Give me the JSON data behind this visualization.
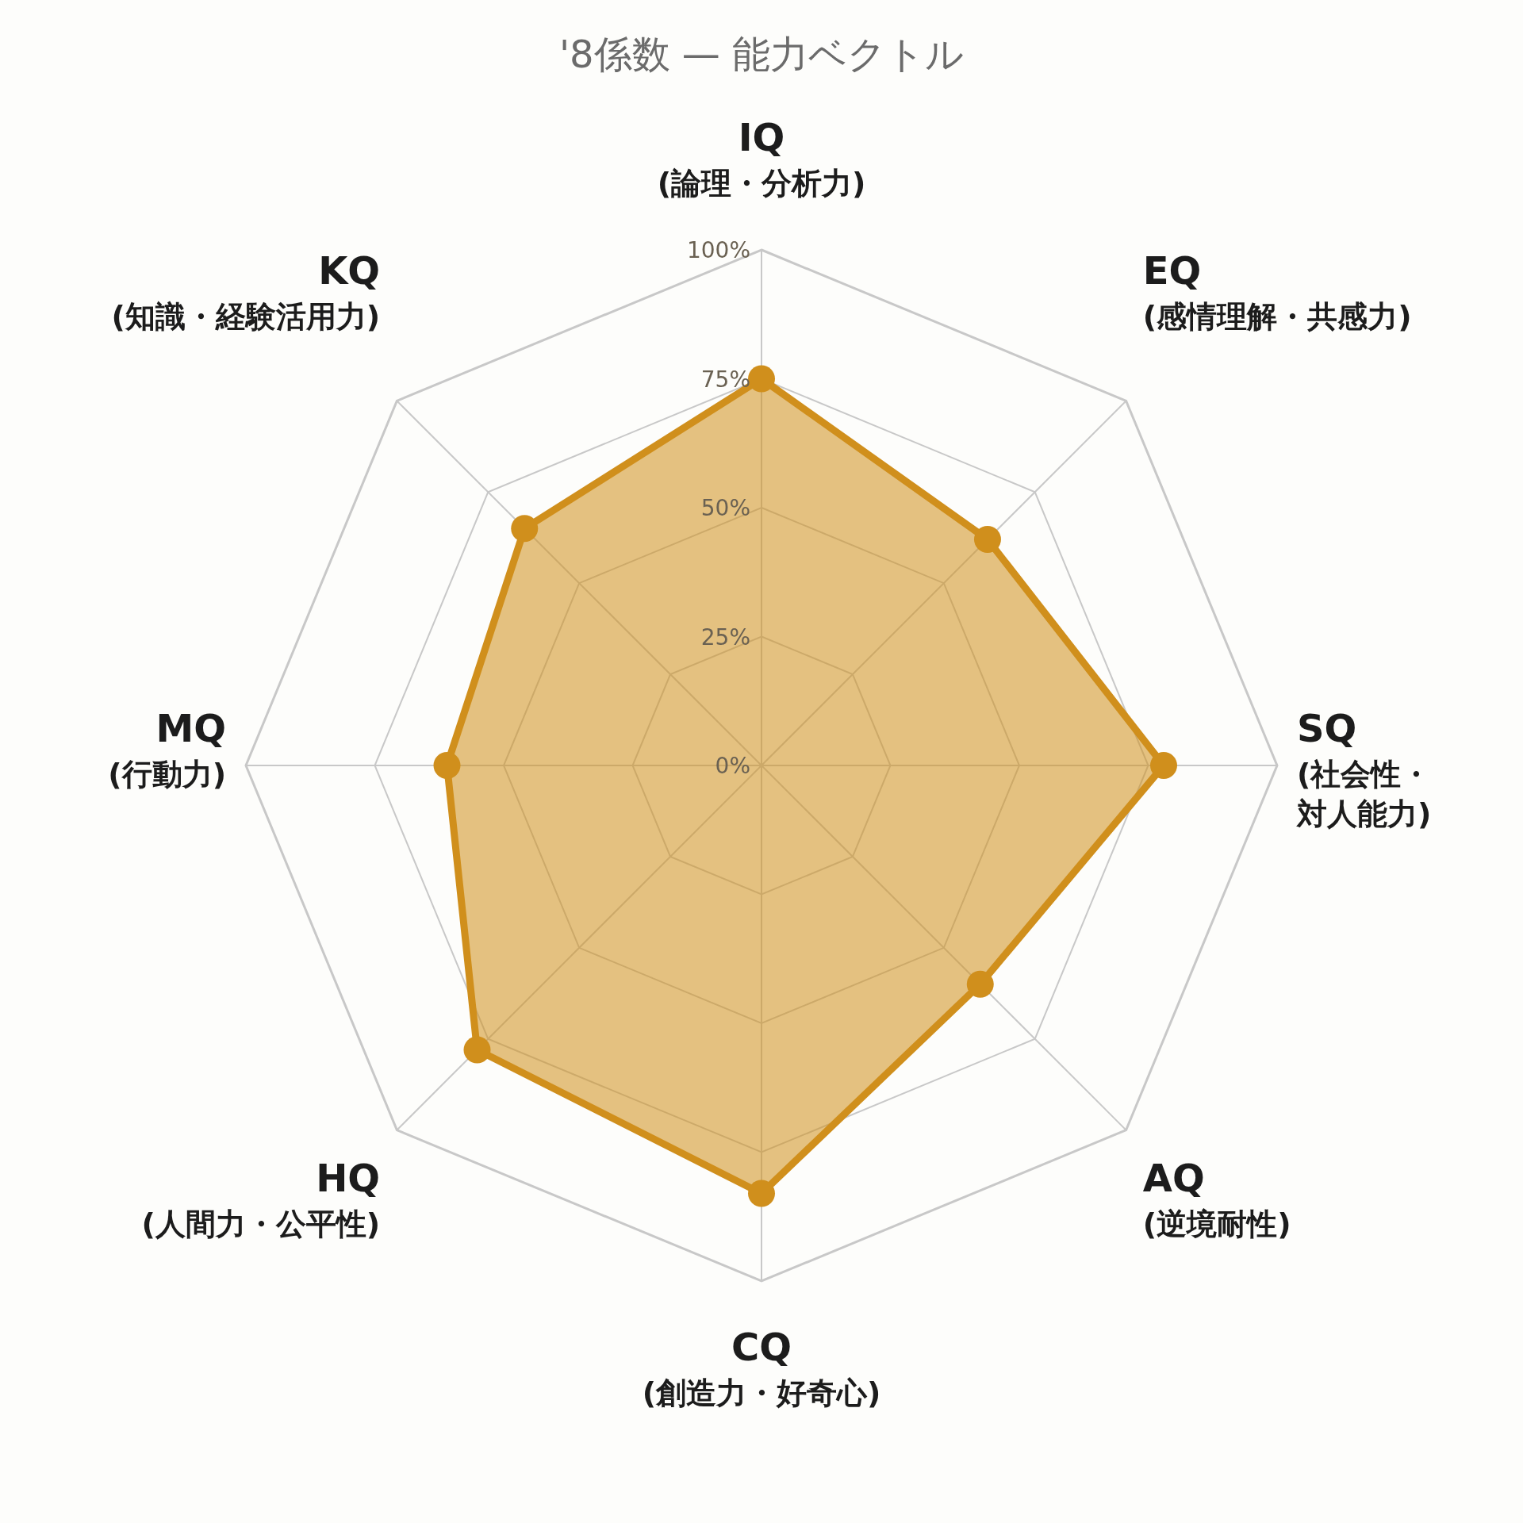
{
  "chart_data": {
    "type": "radar",
    "title": "'8係数 — 能力ベクトル",
    "categories": [
      "IQ (論理・分析力)",
      "EQ (感情理解・共感力)",
      "SQ (社会性・対人能力)",
      "AQ (逆境耐性)",
      "CQ (創造力・好奇心)",
      "HQ (人間力・公平性)",
      "MQ (行動力)",
      "KQ (知識・経験活用力)"
    ],
    "series": [
      {
        "color": "#d08f1c",
        "values": [
          75,
          62,
          78,
          60,
          83,
          78,
          61,
          65
        ]
      }
    ],
    "ylim": [
      0,
      100
    ],
    "yticks": [
      {
        "value": 0,
        "label": "0%"
      },
      {
        "value": 25,
        "label": "25%"
      },
      {
        "value": 50,
        "label": "50%"
      },
      {
        "value": 75,
        "label": "75%"
      },
      {
        "value": 100,
        "label": "100%"
      }
    ],
    "grid": true,
    "marker": "circle"
  }
}
